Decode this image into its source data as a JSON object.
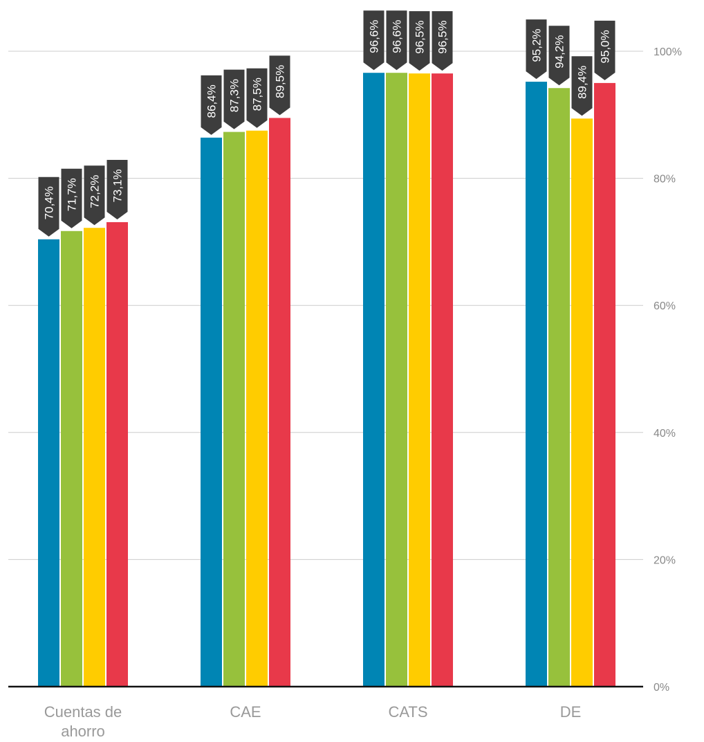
{
  "chart_data": {
    "type": "bar",
    "categories": [
      "Cuentas de ahorro",
      "CAE",
      "CATS",
      "DE"
    ],
    "category_lines": [
      [
        "Cuentas de",
        "ahorro"
      ],
      [
        "CAE"
      ],
      [
        "CATS"
      ],
      [
        "DE"
      ]
    ],
    "series": [
      {
        "values": [
          70.4,
          86.4,
          96.6,
          95.2
        ],
        "color": "#0085b4"
      },
      {
        "values": [
          71.7,
          87.3,
          96.6,
          94.2
        ],
        "color": "#97c13c"
      },
      {
        "values": [
          72.2,
          87.5,
          96.5,
          89.4
        ],
        "color": "#ffcc00"
      },
      {
        "values": [
          73.1,
          89.5,
          96.5,
          95.0
        ],
        "color": "#e8394a"
      }
    ],
    "data_labels": [
      [
        "70,4%",
        "86,4%",
        "96,6%",
        "95,2%"
      ],
      [
        "71,7%",
        "87,3%",
        "96,6%",
        "94,2%"
      ],
      [
        "72,2%",
        "87,5%",
        "96,5%",
        "89,4%"
      ],
      [
        "73,1%",
        "89,5%",
        "96,5%",
        "95,0%"
      ]
    ],
    "y_ticks": [
      0,
      20,
      40,
      60,
      80,
      100
    ],
    "y_tick_labels": [
      "0%",
      "20%",
      "40%",
      "60%",
      "80%",
      "100%"
    ],
    "ylim": [
      0,
      100
    ],
    "grid": true,
    "y_axis_position": "right",
    "label_color": "#3d3d3d"
  }
}
